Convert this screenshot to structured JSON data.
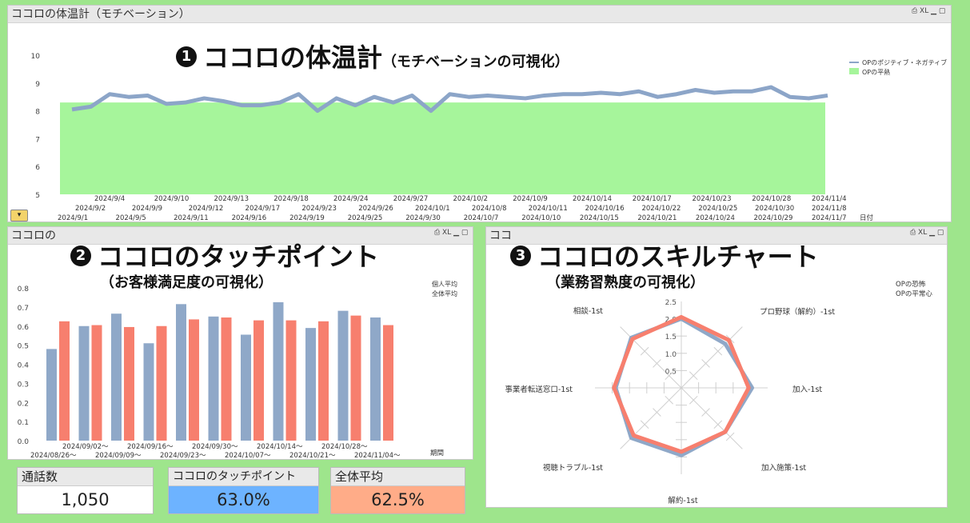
{
  "colors": {
    "background": "#9ee58c",
    "line": "#8ca5c8",
    "area": "#a6f59b",
    "bar_blue": "#8fa8c8",
    "bar_red": "#f77f6e",
    "kpi_blue": "#6db3ff",
    "kpi_orange": "#ffac88"
  },
  "top_panel": {
    "title": "ココロの体温計（モチベーション）",
    "heading_num": "1",
    "heading": "ココロの体温計",
    "heading_sub": "（モチベーションの可視化）",
    "controls": "⎙ XL ▁ ▢",
    "x_axis_title": "日付"
  },
  "chart_data": [
    {
      "type": "line",
      "yticks": [
        "10",
        "9",
        "8",
        "7",
        "6",
        "5"
      ],
      "ylim": [
        5,
        10
      ],
      "legend": [
        "OPのポジティブ・ネガティブ",
        "OPの平熱"
      ],
      "xlabels_row1": [
        "2024/9/4",
        "2024/9/10",
        "2024/9/13",
        "2024/9/18",
        "2024/9/24",
        "2024/9/27",
        "2024/10/2",
        "2024/10/9",
        "2024/10/14",
        "2024/10/17",
        "2024/10/23",
        "2024/10/28",
        "2024/11/4"
      ],
      "xlabels_row2": [
        "2024/9/2",
        "2024/9/9",
        "2024/9/12",
        "2024/9/17",
        "2024/9/23",
        "2024/9/26",
        "2024/10/1",
        "2024/10/8",
        "2024/10/11",
        "2024/10/16",
        "2024/10/22",
        "2024/10/25",
        "2024/10/30",
        "2024/11/8"
      ],
      "xlabels_row3": [
        "2024/9/1",
        "2024/9/5",
        "2024/9/11",
        "2024/9/16",
        "2024/9/19",
        "2024/9/25",
        "2024/9/30",
        "2024/10/7",
        "2024/10/10",
        "2024/10/15",
        "2024/10/21",
        "2024/10/24",
        "2024/10/29",
        "2024/11/7"
      ],
      "series": [
        {
          "name": "OPのポジティブ・ネガティブ",
          "values": [
            8.05,
            8.15,
            8.6,
            8.5,
            8.55,
            8.25,
            8.3,
            8.45,
            8.35,
            8.2,
            8.2,
            8.3,
            8.6,
            8.0,
            8.45,
            8.2,
            8.5,
            8.3,
            8.55,
            8.0,
            8.6,
            8.5,
            8.55,
            8.5,
            8.45,
            8.55,
            8.6,
            8.6,
            8.65,
            8.6,
            8.7,
            8.5,
            8.6,
            8.75,
            8.65,
            8.7,
            8.7,
            8.85,
            8.5,
            8.45,
            8.55
          ]
        },
        {
          "name": "OPの平熱",
          "value": 8.3
        }
      ]
    },
    {
      "type": "bar",
      "categories": [
        "2024/08/26～",
        "2024/09/02～",
        "2024/09/09～",
        "2024/09/16～",
        "2024/09/23～",
        "2024/09/30～",
        "2024/10/07～",
        "2024/10/14～",
        "2024/10/21～",
        "2024/10/28～",
        "2024/11/04～"
      ],
      "xlabels_top": [
        "2024/09/02～",
        "2024/09/16～",
        "2024/09/30～",
        "2024/10/14～",
        "2024/10/28～"
      ],
      "xlabels_bottom": [
        "2024/08/26～",
        "2024/09/09～",
        "2024/09/23～",
        "2024/10/07～",
        "2024/10/21～",
        "2024/11/04～"
      ],
      "yticks": [
        "0.8",
        "0.7",
        "0.6",
        "0.5",
        "0.4",
        "0.3",
        "0.2",
        "0.1",
        "0.0"
      ],
      "ylim": [
        0,
        0.8
      ],
      "xlabel": "期間",
      "legend": [
        "個人平均",
        "全体平均"
      ],
      "series": [
        {
          "name": "個人平均",
          "values": [
            0.48,
            0.6,
            0.665,
            0.51,
            0.715,
            0.65,
            0.555,
            0.725,
            0.59,
            0.68,
            0.645
          ]
        },
        {
          "name": "全体平均",
          "values": [
            0.625,
            0.605,
            0.595,
            0.6,
            0.635,
            0.645,
            0.63,
            0.63,
            0.625,
            0.655,
            0.605
          ]
        }
      ]
    },
    {
      "type": "radar",
      "axes": [
        "加入-1st",
        "プロ野球（解約）-1st",
        "相談-1st",
        "事業者転送窓口-1st",
        "視聴トラブル-1st",
        "解約-1st",
        "加入施策-1st"
      ],
      "axis_labels": {
        "top": "",
        "top_right": "プロ野球（解約）-1st",
        "right": "加入-1st",
        "bottom_right": "加入施策-1st",
        "bottom": "解約-1st",
        "bottom_left": "視聴トラブル-1st",
        "left": "事業者転送窓口-1st",
        "top_left": "相談-1st"
      },
      "rticks": [
        "2.5",
        "2.0",
        "1.5",
        "1.0",
        "0.5"
      ],
      "legend": [
        "OPの恐怖",
        "OPの平常心"
      ],
      "series": [
        {
          "name": "OPの恐怖",
          "values": [
            2.05,
            1.95,
            1.95,
            1.8,
            1.85,
            1.95,
            1.95,
            2.0
          ]
        },
        {
          "name": "OPの平常心",
          "values": [
            2.0,
            1.8,
            2.05,
            1.8,
            1.95,
            2.05,
            1.9,
            2.05
          ]
        }
      ]
    }
  ],
  "touch_panel": {
    "title": "ココロの",
    "controls": "⎙ XL ▁ ▢",
    "heading_num": "2",
    "heading": "ココロのタッチポイント",
    "sub": "（お客様満足度の可視化）"
  },
  "skill_panel": {
    "title": "ココ",
    "controls": "⎙ XL ▁ ▢",
    "heading_num": "3",
    "heading": "ココロのスキルチャート",
    "sub": "（業務習熟度の可視化）"
  },
  "kpis": [
    {
      "label": "通話数",
      "value": "1,050"
    },
    {
      "label": "ココロのタッチポイント",
      "value": "63.0%"
    },
    {
      "label": "全体平均",
      "value": "62.5%"
    }
  ],
  "icons": {
    "dropdown": "cycle-dropdown-icon"
  }
}
